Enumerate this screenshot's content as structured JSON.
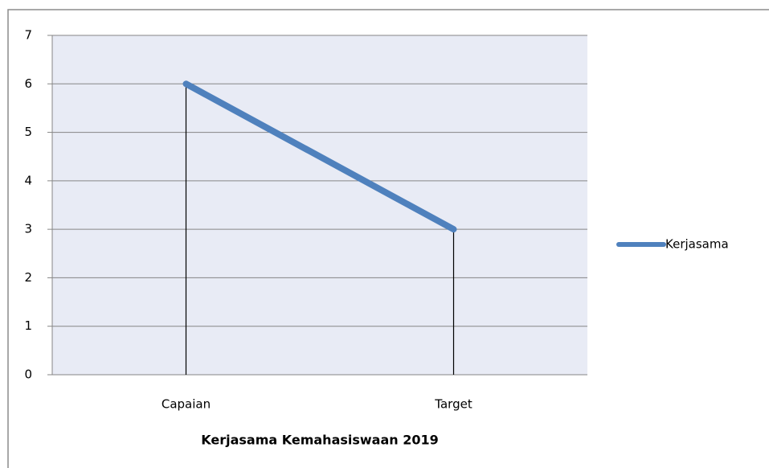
{
  "chart_data": {
    "type": "line",
    "x_axis_label": "Kerjasama Kemahasiswaan  2019",
    "categories": [
      "Capaian",
      "Target"
    ],
    "series": [
      {
        "name": "Kerjasama",
        "color": "#4f81bd",
        "values": [
          6,
          3
        ]
      }
    ],
    "ylim": [
      0,
      7
    ],
    "yticks": [
      0,
      1,
      2,
      3,
      4,
      5,
      6,
      7
    ],
    "grid": true,
    "drop_lines": true,
    "legend": "right"
  }
}
